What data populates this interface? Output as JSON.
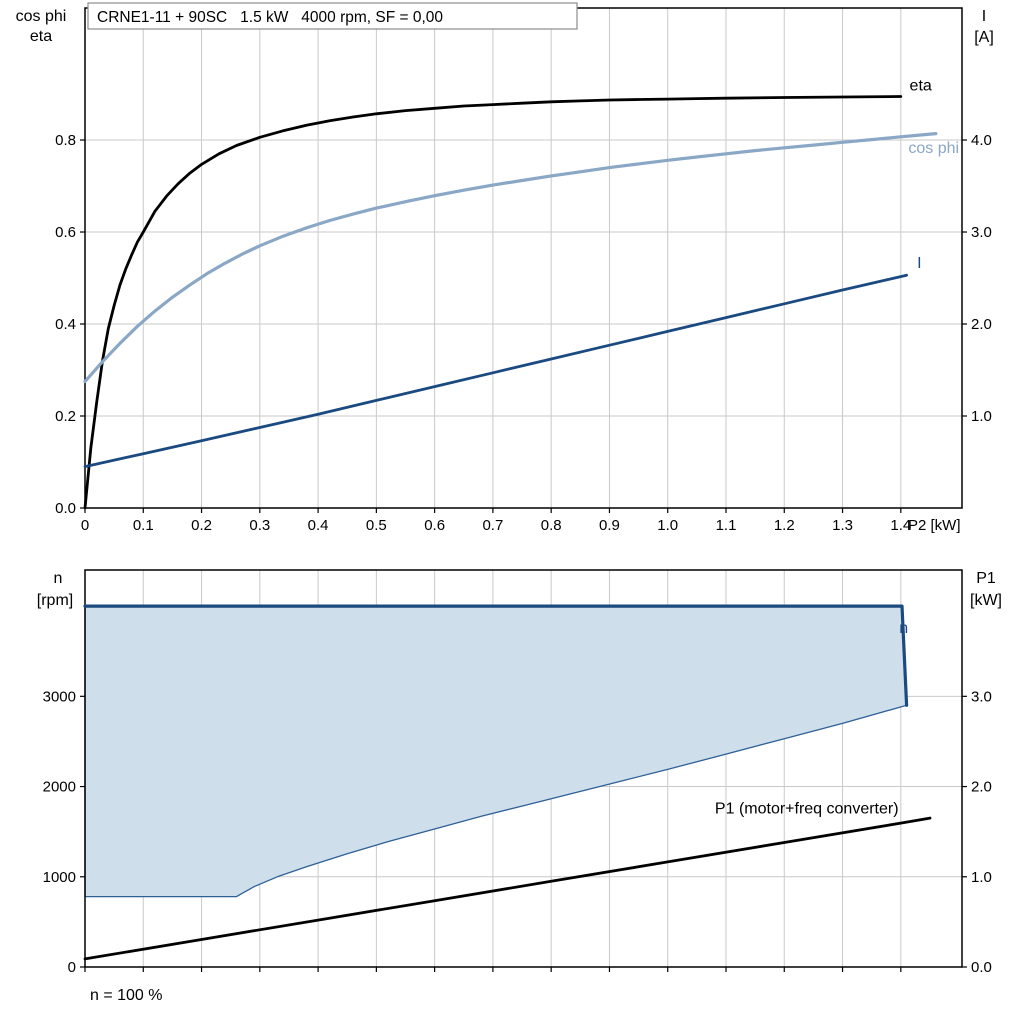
{
  "footer": {
    "note": "n = 100 %"
  },
  "chart_data": [
    {
      "id": "top",
      "type": "line",
      "title": "CRNE1-11 + 90SC   1.5 kW   4000 rpm, SF = 0,00",
      "grid_color": "#c9c9c9",
      "x_axis": {
        "label": "P2 [kW]",
        "lim": [
          0,
          1.505
        ],
        "ticks": [
          {
            "v": 0,
            "label": "0"
          },
          {
            "v": 0.1,
            "label": "0.1"
          },
          {
            "v": 0.2,
            "label": "0.2"
          },
          {
            "v": 0.3,
            "label": "0.3"
          },
          {
            "v": 0.4,
            "label": "0.4"
          },
          {
            "v": 0.5,
            "label": "0.5"
          },
          {
            "v": 0.6,
            "label": "0.6"
          },
          {
            "v": 0.7,
            "label": "0.7"
          },
          {
            "v": 0.8,
            "label": "0.8"
          },
          {
            "v": 0.9,
            "label": "0.9"
          },
          {
            "v": 1.0,
            "label": "1.0"
          },
          {
            "v": 1.1,
            "label": "1.1"
          },
          {
            "v": 1.2,
            "label": "1.2"
          },
          {
            "v": 1.3,
            "label": "1.3"
          },
          {
            "v": 1.4,
            "label": "1.4"
          }
        ]
      },
      "left_axis": {
        "header": [
          "cos phi",
          "eta"
        ],
        "lim": [
          0,
          1.087
        ],
        "ticks": [
          {
            "v": 0.0,
            "label": "0.0"
          },
          {
            "v": 0.2,
            "label": "0.2"
          },
          {
            "v": 0.4,
            "label": "0.4"
          },
          {
            "v": 0.6,
            "label": "0.6"
          },
          {
            "v": 0.8,
            "label": "0.8"
          }
        ]
      },
      "right_axis": {
        "header": [
          "I",
          "[A]"
        ],
        "lim": [
          0,
          5.435
        ],
        "ticks": [
          {
            "v": 1.0,
            "label": "1.0"
          },
          {
            "v": 2.0,
            "label": "2.0"
          },
          {
            "v": 3.0,
            "label": "3.0"
          },
          {
            "v": 4.0,
            "label": "4.0"
          }
        ]
      },
      "series": [
        {
          "name": "eta",
          "axis": "left",
          "color": "#000000",
          "width": 2.8,
          "points": [
            [
              0,
              0
            ],
            [
              0.01,
              0.13
            ],
            [
              0.02,
              0.23
            ],
            [
              0.03,
              0.32
            ],
            [
              0.04,
              0.39
            ],
            [
              0.05,
              0.44
            ],
            [
              0.06,
              0.485
            ],
            [
              0.07,
              0.52
            ],
            [
              0.08,
              0.55
            ],
            [
              0.09,
              0.578
            ],
            [
              0.1,
              0.6
            ],
            [
              0.12,
              0.645
            ],
            [
              0.14,
              0.678
            ],
            [
              0.16,
              0.705
            ],
            [
              0.18,
              0.728
            ],
            [
              0.2,
              0.747
            ],
            [
              0.23,
              0.77
            ],
            [
              0.26,
              0.788
            ],
            [
              0.3,
              0.806
            ],
            [
              0.34,
              0.82
            ],
            [
              0.38,
              0.832
            ],
            [
              0.42,
              0.842
            ],
            [
              0.46,
              0.85
            ],
            [
              0.5,
              0.857
            ],
            [
              0.55,
              0.864
            ],
            [
              0.6,
              0.869
            ],
            [
              0.65,
              0.874
            ],
            [
              0.7,
              0.877
            ],
            [
              0.75,
              0.88
            ],
            [
              0.8,
              0.883
            ],
            [
              0.85,
              0.885
            ],
            [
              0.9,
              0.887
            ],
            [
              0.95,
              0.888
            ],
            [
              1.0,
              0.889
            ],
            [
              1.05,
              0.89
            ],
            [
              1.1,
              0.891
            ],
            [
              1.2,
              0.8925
            ],
            [
              1.3,
              0.8935
            ],
            [
              1.4,
              0.8945
            ]
          ]
        },
        {
          "name": "cos-phi",
          "axis": "left",
          "color": "#8aa7c6",
          "width": 3.2,
          "points": [
            [
              0,
              0.275
            ],
            [
              0.03,
              0.318
            ],
            [
              0.06,
              0.358
            ],
            [
              0.09,
              0.395
            ],
            [
              0.12,
              0.428
            ],
            [
              0.15,
              0.458
            ],
            [
              0.18,
              0.485
            ],
            [
              0.21,
              0.51
            ],
            [
              0.24,
              0.532
            ],
            [
              0.27,
              0.552
            ],
            [
              0.3,
              0.57
            ],
            [
              0.34,
              0.591
            ],
            [
              0.38,
              0.609
            ],
            [
              0.42,
              0.625
            ],
            [
              0.46,
              0.639
            ],
            [
              0.5,
              0.652
            ],
            [
              0.55,
              0.666
            ],
            [
              0.6,
              0.679
            ],
            [
              0.65,
              0.691
            ],
            [
              0.7,
              0.702
            ],
            [
              0.75,
              0.712
            ],
            [
              0.8,
              0.722
            ],
            [
              0.85,
              0.731
            ],
            [
              0.9,
              0.74
            ],
            [
              0.95,
              0.748
            ],
            [
              1.0,
              0.756
            ],
            [
              1.05,
              0.763
            ],
            [
              1.1,
              0.77
            ],
            [
              1.15,
              0.777
            ],
            [
              1.2,
              0.783
            ],
            [
              1.25,
              0.789
            ],
            [
              1.3,
              0.795
            ],
            [
              1.35,
              0.801
            ],
            [
              1.4,
              0.807
            ],
            [
              1.46,
              0.814
            ]
          ]
        },
        {
          "name": "current",
          "axis": "right",
          "color": "#1a4a80",
          "width": 2.8,
          "points": [
            [
              0,
              0.45
            ],
            [
              0.1,
              0.59
            ],
            [
              0.2,
              0.73
            ],
            [
              0.3,
              0.875
            ],
            [
              0.4,
              1.02
            ],
            [
              0.5,
              1.17
            ],
            [
              0.6,
              1.32
            ],
            [
              0.7,
              1.47
            ],
            [
              0.8,
              1.62
            ],
            [
              0.9,
              1.77
            ],
            [
              1.0,
              1.92
            ],
            [
              1.1,
              2.07
            ],
            [
              1.2,
              2.22
            ],
            [
              1.3,
              2.37
            ],
            [
              1.41,
              2.53
            ]
          ]
        }
      ],
      "annotations": [
        {
          "text": "eta",
          "x": 1.415,
          "y": 0.908,
          "axis": "left",
          "anchor": "start",
          "color": "#000000"
        },
        {
          "text": "cos phi",
          "x": 1.5,
          "y": 0.772,
          "axis": "left",
          "anchor": "end",
          "color": "#8aa7c6"
        },
        {
          "text": "I",
          "x": 1.428,
          "y": 0.522,
          "axis": "left",
          "anchor": "start",
          "color": "#1a4a80"
        }
      ]
    },
    {
      "id": "bottom",
      "type": "line",
      "title": "",
      "grid_color": "#c9c9c9",
      "x_axis": {
        "label": "",
        "lim": [
          0,
          1.505
        ],
        "ticks": [
          {
            "v": 0,
            "label": ""
          },
          {
            "v": 0.1,
            "label": ""
          },
          {
            "v": 0.2,
            "label": ""
          },
          {
            "v": 0.3,
            "label": ""
          },
          {
            "v": 0.4,
            "label": ""
          },
          {
            "v": 0.5,
            "label": ""
          },
          {
            "v": 0.6,
            "label": ""
          },
          {
            "v": 0.7,
            "label": ""
          },
          {
            "v": 0.8,
            "label": ""
          },
          {
            "v": 0.9,
            "label": ""
          },
          {
            "v": 1.0,
            "label": ""
          },
          {
            "v": 1.1,
            "label": ""
          },
          {
            "v": 1.2,
            "label": ""
          },
          {
            "v": 1.3,
            "label": ""
          },
          {
            "v": 1.4,
            "label": ""
          }
        ]
      },
      "left_axis": {
        "header": [
          "n",
          "[rpm]"
        ],
        "lim": [
          0,
          4400
        ],
        "ticks": [
          {
            "v": 0,
            "label": "0"
          },
          {
            "v": 1000,
            "label": "1000"
          },
          {
            "v": 2000,
            "label": "2000"
          },
          {
            "v": 3000,
            "label": "3000"
          }
        ]
      },
      "right_axis": {
        "header": [
          "P1",
          "[kW]"
        ],
        "lim": [
          0,
          4.4
        ],
        "ticks": [
          {
            "v": 0,
            "label": "0.0"
          },
          {
            "v": 1.0,
            "label": "1.0"
          },
          {
            "v": 2.0,
            "label": "2.0"
          },
          {
            "v": 3.0,
            "label": "3.0"
          }
        ]
      },
      "series": [
        {
          "name": "speed-operating-region",
          "axis": "left",
          "fill": true,
          "fill_color": "#cfdeeb",
          "color": "#2e6096",
          "width": 1.3,
          "points": [
            [
              0,
              780
            ],
            [
              0.26,
              780
            ],
            [
              0.29,
              890
            ],
            [
              0.33,
              1000
            ],
            [
              0.38,
              1110
            ],
            [
              0.45,
              1255
            ],
            [
              0.52,
              1390
            ],
            [
              0.6,
              1530
            ],
            [
              0.68,
              1670
            ],
            [
              0.76,
              1800
            ],
            [
              0.84,
              1930
            ],
            [
              0.92,
              2060
            ],
            [
              1.0,
              2190
            ],
            [
              1.1,
              2360
            ],
            [
              1.2,
              2530
            ],
            [
              1.3,
              2700
            ],
            [
              1.41,
              2900
            ],
            [
              1.402,
              4000
            ],
            [
              0,
              4000
            ]
          ]
        },
        {
          "name": "n",
          "axis": "left",
          "color": "#1a4a80",
          "width": 3.2,
          "points": [
            [
              0,
              4000
            ],
            [
              1.402,
              4000
            ],
            [
              1.41,
              2900
            ]
          ]
        },
        {
          "name": "p1",
          "axis": "right",
          "color": "#000000",
          "width": 2.8,
          "points": [
            [
              0,
              0.09
            ],
            [
              0.2,
              0.305
            ],
            [
              0.4,
              0.52
            ],
            [
              0.6,
              0.735
            ],
            [
              0.8,
              0.95
            ],
            [
              1.0,
              1.165
            ],
            [
              1.2,
              1.38
            ],
            [
              1.4,
              1.595
            ],
            [
              1.45,
              1.65
            ]
          ]
        }
      ],
      "annotations": [
        {
          "text": "n",
          "x": 1.405,
          "y": 3700,
          "axis": "left",
          "anchor": "middle",
          "color": "#1a4a80"
        },
        {
          "text": "P1 (motor+freq converter)",
          "x": 1.081,
          "y": 1.7,
          "axis": "right",
          "anchor": "start",
          "color": "#000000"
        }
      ]
    }
  ]
}
